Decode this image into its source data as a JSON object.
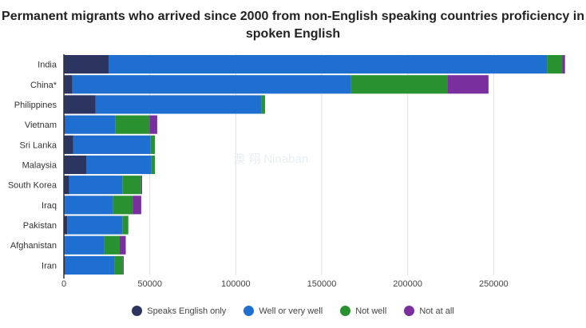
{
  "chart_data": {
    "type": "bar",
    "orientation": "horizontal",
    "stacked": true,
    "title": "Permanent migrants who arrived since 2000 from non-English speaking countries proficiency in spoken English",
    "categories": [
      "India",
      "China*",
      "Philippines",
      "Vietnam",
      "Sri Lanka",
      "Malaysia",
      "South Korea",
      "Iraq",
      "Pakistan",
      "Afghanistan",
      "Iran"
    ],
    "series": [
      {
        "name": "Speaks English only",
        "color": "#2c3560",
        "values": [
          26000,
          5000,
          18500,
          800,
          5500,
          13000,
          3000,
          500,
          2000,
          500,
          800
        ]
      },
      {
        "name": "Well or very well",
        "color": "#1f6fd1",
        "values": [
          255000,
          162000,
          96500,
          29000,
          45000,
          38000,
          31000,
          28000,
          32000,
          23000,
          28500
        ]
      },
      {
        "name": "Not well",
        "color": "#2a9130",
        "values": [
          9000,
          56000,
          2000,
          20000,
          2500,
          2000,
          11000,
          11500,
          3500,
          9000,
          5000
        ]
      },
      {
        "name": "Not at all",
        "color": "#7a2f9e",
        "values": [
          1500,
          24000,
          0,
          4500,
          0,
          0,
          500,
          5000,
          0,
          3500,
          500
        ]
      }
    ],
    "x_ticks": [
      "0",
      "50000",
      "100000",
      "150000",
      "200000",
      "250000"
    ],
    "xlim": [
      0,
      300000
    ],
    "grid": true,
    "legend_position": "bottom",
    "watermark": "澳 翔 Ninaban"
  }
}
